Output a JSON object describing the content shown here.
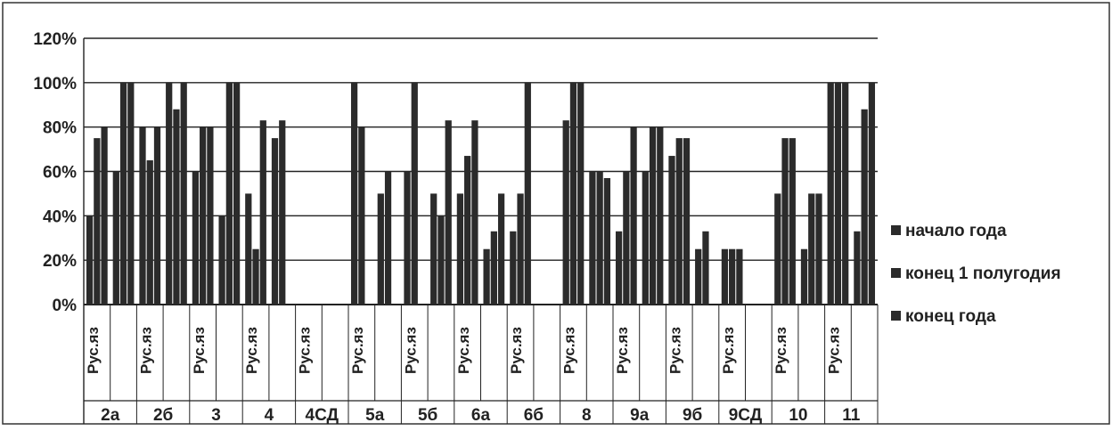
{
  "chart_data": {
    "type": "bar",
    "series": [
      {
        "name": "начало года"
      },
      {
        "name": "конец 1 полугодия"
      },
      {
        "name": "конец года"
      }
    ],
    "groups": [
      {
        "class": "2а",
        "subject": "Рус.яз",
        "bars": [
          {
            "values": [
              40,
              75,
              80
            ]
          },
          {
            "values": [
              60,
              100,
              100
            ]
          }
        ]
      },
      {
        "class": "2б",
        "subject": "Рус.яз",
        "bars": [
          {
            "values": [
              80,
              65,
              80
            ]
          },
          {
            "values": [
              100,
              88,
              100
            ]
          }
        ]
      },
      {
        "class": "3",
        "subject": "Рус.яз",
        "bars": [
          {
            "values": [
              60,
              80,
              80
            ]
          },
          {
            "values": [
              40,
              100,
              100
            ]
          }
        ]
      },
      {
        "class": "4",
        "subject": "Рус.яз",
        "bars": [
          {
            "values": [
              50,
              25,
              83
            ]
          },
          {
            "values": [
              75,
              83,
              null
            ]
          }
        ]
      },
      {
        "class": "4СД",
        "subject": "Рус.яз",
        "bars": []
      },
      {
        "class": "5а",
        "subject": "Рус.яз",
        "bars": [
          {
            "values": [
              100,
              80,
              null
            ]
          },
          {
            "values": [
              50,
              60,
              null
            ]
          }
        ]
      },
      {
        "class": "5б",
        "subject": "Рус.яз",
        "bars": [
          {
            "values": [
              60,
              100,
              null
            ]
          },
          {
            "values": [
              50,
              40,
              83
            ]
          }
        ]
      },
      {
        "class": "6а",
        "subject": "Рус.яз",
        "bars": [
          {
            "values": [
              50,
              67,
              83
            ]
          },
          {
            "values": [
              25,
              33,
              50
            ]
          }
        ]
      },
      {
        "class": "6б",
        "subject": "Рус.яз",
        "bars": [
          {
            "values": [
              33,
              50,
              100
            ]
          }
        ]
      },
      {
        "class": "8",
        "subject": "Рус.яз",
        "bars": [
          {
            "values": [
              83,
              100,
              100
            ]
          },
          {
            "values": [
              60,
              60,
              57
            ]
          }
        ]
      },
      {
        "class": "9а",
        "subject": "Рус.яз",
        "bars": [
          {
            "values": [
              33,
              60,
              80
            ]
          },
          {
            "values": [
              60,
              80,
              80
            ]
          }
        ]
      },
      {
        "class": "9б",
        "subject": "Рус.яз",
        "bars": [
          {
            "values": [
              67,
              75,
              75
            ]
          },
          {
            "values": [
              25,
              33,
              null
            ]
          }
        ]
      },
      {
        "class": "9СД",
        "subject": "Рус.яз",
        "bars": [
          {
            "values": [
              25,
              25,
              25
            ]
          }
        ]
      },
      {
        "class": "10",
        "subject": "Рус.яз",
        "bars": [
          {
            "values": [
              50,
              75,
              75
            ]
          },
          {
            "values": [
              25,
              50,
              50
            ]
          }
        ]
      },
      {
        "class": "11",
        "subject": "Рус.яз",
        "bars": [
          {
            "values": [
              100,
              100,
              100
            ]
          },
          {
            "values": [
              33,
              88,
              100
            ]
          }
        ]
      }
    ],
    "ylim": [
      0,
      120
    ],
    "yticks": [
      "0%",
      "20%",
      "40%",
      "60%",
      "80%",
      "100%",
      "120%"
    ],
    "grid": true,
    "legend_position": "right",
    "bar_color": "#2b2b2b"
  }
}
